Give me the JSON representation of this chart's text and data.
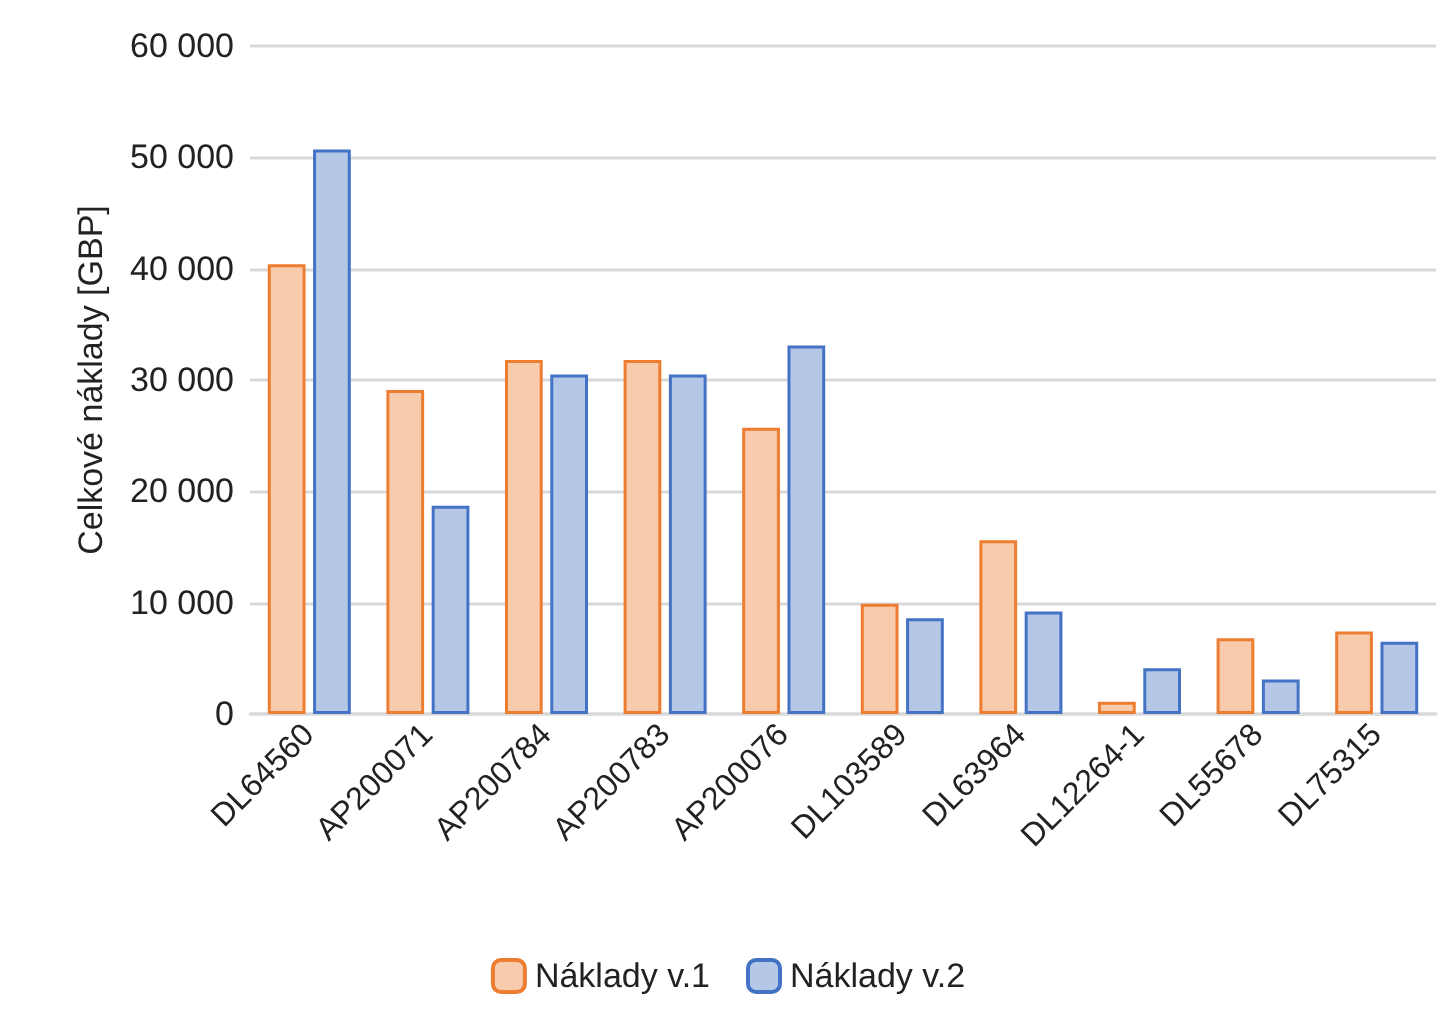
{
  "chart_data": {
    "type": "bar",
    "ylabel": "Celkové náklady [GBP]",
    "categories": [
      "DL64560",
      "AP200071",
      "AP200784",
      "AP200783",
      "AP200076",
      "DL103589",
      "DL63964",
      "DL12264-1",
      "DL55678",
      "DL75315"
    ],
    "series": [
      {
        "name": "Náklady v.1",
        "color": "#f8cbad",
        "values": [
          40400,
          29100,
          31800,
          31800,
          25700,
          9900,
          15600,
          1100,
          6800,
          7400
        ]
      },
      {
        "name": "Náklady v.2",
        "color": "#b4c7e7",
        "values": [
          50700,
          18700,
          30500,
          30500,
          33100,
          8600,
          9200,
          4100,
          3100,
          6500
        ]
      }
    ],
    "ylim": [
      0,
      60000
    ],
    "yticks": [
      {
        "value": 0,
        "label": "0"
      },
      {
        "value": 10000,
        "label": "10 000"
      },
      {
        "value": 20000,
        "label": "20 000"
      },
      {
        "value": 30000,
        "label": "30 000"
      },
      {
        "value": 40000,
        "label": "40 000"
      },
      {
        "value": 50000,
        "label": "50 000"
      },
      {
        "value": 60000,
        "label": "60 000"
      }
    ],
    "grid": "y",
    "legend": "bottom"
  }
}
